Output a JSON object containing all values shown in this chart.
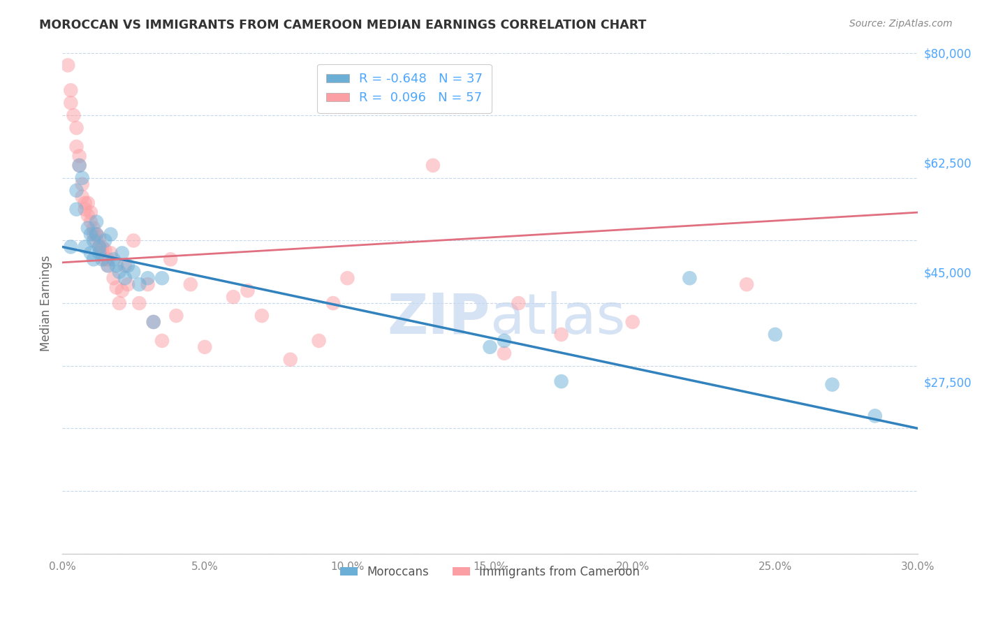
{
  "title": "MOROCCAN VS IMMIGRANTS FROM CAMEROON MEDIAN EARNINGS CORRELATION CHART",
  "source": "Source: ZipAtlas.com",
  "xlabel_ticks": [
    "0.0%",
    "5.0%",
    "10.0%",
    "15.0%",
    "20.0%",
    "25.0%",
    "30.0%"
  ],
  "xlabel_vals": [
    0.0,
    0.05,
    0.1,
    0.15,
    0.2,
    0.25,
    0.3
  ],
  "ylabel_ticks": [
    "$27,500",
    "$45,000",
    "$62,500",
    "$80,000"
  ],
  "ylabel_vals": [
    27500,
    45000,
    62500,
    80000
  ],
  "xlim": [
    0.0,
    0.3
  ],
  "ylim": [
    0,
    80000
  ],
  "blue_color": "#6baed6",
  "pink_color": "#fc9fa4",
  "blue_line_color": "#3182bd",
  "pink_line_color": "#e07080",
  "legend_blue_label": "R = -0.648   N = 37",
  "legend_pink_label": "R =  0.096   N = 57",
  "legend_moroccans": "Moroccans",
  "legend_cameroon": "Immigrants from Cameroon",
  "blue_scatter_x": [
    0.003,
    0.005,
    0.005,
    0.006,
    0.007,
    0.008,
    0.009,
    0.01,
    0.01,
    0.011,
    0.011,
    0.012,
    0.012,
    0.013,
    0.013,
    0.014,
    0.015,
    0.016,
    0.017,
    0.018,
    0.019,
    0.02,
    0.021,
    0.022,
    0.023,
    0.025,
    0.027,
    0.03,
    0.032,
    0.035,
    0.15,
    0.155,
    0.175,
    0.22,
    0.25,
    0.27,
    0.285
  ],
  "blue_scatter_y": [
    49000,
    58000,
    55000,
    62000,
    60000,
    49000,
    52000,
    48000,
    51000,
    50000,
    47000,
    51000,
    53000,
    49000,
    48000,
    47000,
    50000,
    46000,
    51000,
    47000,
    46000,
    45000,
    48000,
    44000,
    46000,
    45000,
    43000,
    44000,
    37000,
    44000,
    33000,
    34000,
    27500,
    44000,
    35000,
    27000,
    22000
  ],
  "pink_scatter_x": [
    0.002,
    0.003,
    0.003,
    0.004,
    0.005,
    0.005,
    0.006,
    0.006,
    0.007,
    0.007,
    0.008,
    0.008,
    0.009,
    0.009,
    0.01,
    0.01,
    0.011,
    0.011,
    0.012,
    0.012,
    0.013,
    0.013,
    0.014,
    0.014,
    0.015,
    0.015,
    0.016,
    0.016,
    0.017,
    0.018,
    0.019,
    0.02,
    0.021,
    0.022,
    0.023,
    0.025,
    0.027,
    0.03,
    0.032,
    0.035,
    0.038,
    0.04,
    0.045,
    0.05,
    0.06,
    0.065,
    0.07,
    0.08,
    0.09,
    0.095,
    0.1,
    0.13,
    0.155,
    0.16,
    0.175,
    0.2,
    0.24
  ],
  "pink_scatter_y": [
    78000,
    74000,
    72000,
    70000,
    68000,
    65000,
    62000,
    63500,
    57000,
    59000,
    55000,
    56000,
    54000,
    56000,
    53000,
    54500,
    51000,
    52000,
    50000,
    51000,
    49000,
    50500,
    48000,
    49000,
    47000,
    48500,
    46000,
    47000,
    48000,
    44000,
    42500,
    40000,
    42000,
    46000,
    43000,
    50000,
    40000,
    43000,
    37000,
    34000,
    47000,
    38000,
    43000,
    33000,
    41000,
    42000,
    38000,
    31000,
    34000,
    40000,
    44000,
    62000,
    32000,
    40000,
    35000,
    37000,
    43000
  ],
  "blue_trend_x": [
    0.0,
    0.3
  ],
  "blue_trend_y": [
    49000,
    20000
  ],
  "pink_trend_x": [
    0.0,
    0.3
  ],
  "pink_trend_y": [
    46500,
    54500
  ],
  "watermark_zip": "ZIP",
  "watermark_atlas": "atlas",
  "background_color": "#ffffff",
  "grid_color": "#c8d8e8"
}
